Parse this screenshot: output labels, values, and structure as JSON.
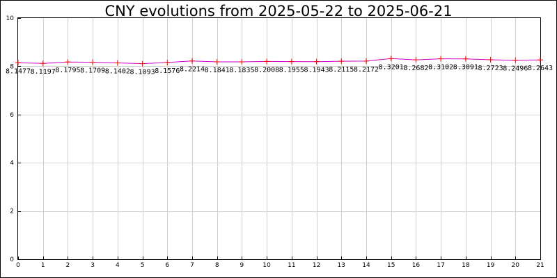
{
  "chart_data": {
    "type": "line",
    "title": "CNY evolutions from 2025-05-22 to 2025-06-21",
    "xlabel": "",
    "ylabel": "",
    "x": [
      0,
      1,
      2,
      3,
      4,
      5,
      6,
      7,
      8,
      9,
      10,
      11,
      12,
      13,
      14,
      15,
      16,
      17,
      18,
      19,
      20,
      21
    ],
    "values": [
      8.1477,
      8.1197,
      8.1795,
      8.1709,
      8.1402,
      8.1093,
      8.1576,
      8.2214,
      8.1841,
      8.1835,
      8.2008,
      8.1955,
      8.1943,
      8.2115,
      8.2172,
      8.3201,
      8.2682,
      8.3102,
      8.3091,
      8.2723,
      8.2496,
      8.2643
    ],
    "labels": [
      "8.1477",
      "8.1197",
      "8.1795",
      "8.1709",
      "8.1402",
      "8.1093",
      "8.1576",
      "8.2214",
      "8.1841",
      "8.1835",
      "8.2008",
      "8.1955",
      "8.1943",
      "8.2115",
      "8.2172",
      "8.3201",
      "8.2682",
      "8.3102",
      "8.3091",
      "8.2723",
      "8.2496",
      "8.2643"
    ],
    "xlim": [
      0,
      21
    ],
    "ylim": [
      0,
      10
    ],
    "yticks": [
      0,
      2,
      4,
      6,
      8,
      10
    ],
    "xticks": [
      0,
      1,
      2,
      3,
      4,
      5,
      6,
      7,
      8,
      9,
      10,
      11,
      12,
      13,
      14,
      15,
      16,
      17,
      18,
      19,
      20,
      21
    ],
    "grid": true,
    "colors": {
      "line": "#cc00cc",
      "marker": "#ff0000",
      "grid": "#d0d0d0"
    }
  }
}
